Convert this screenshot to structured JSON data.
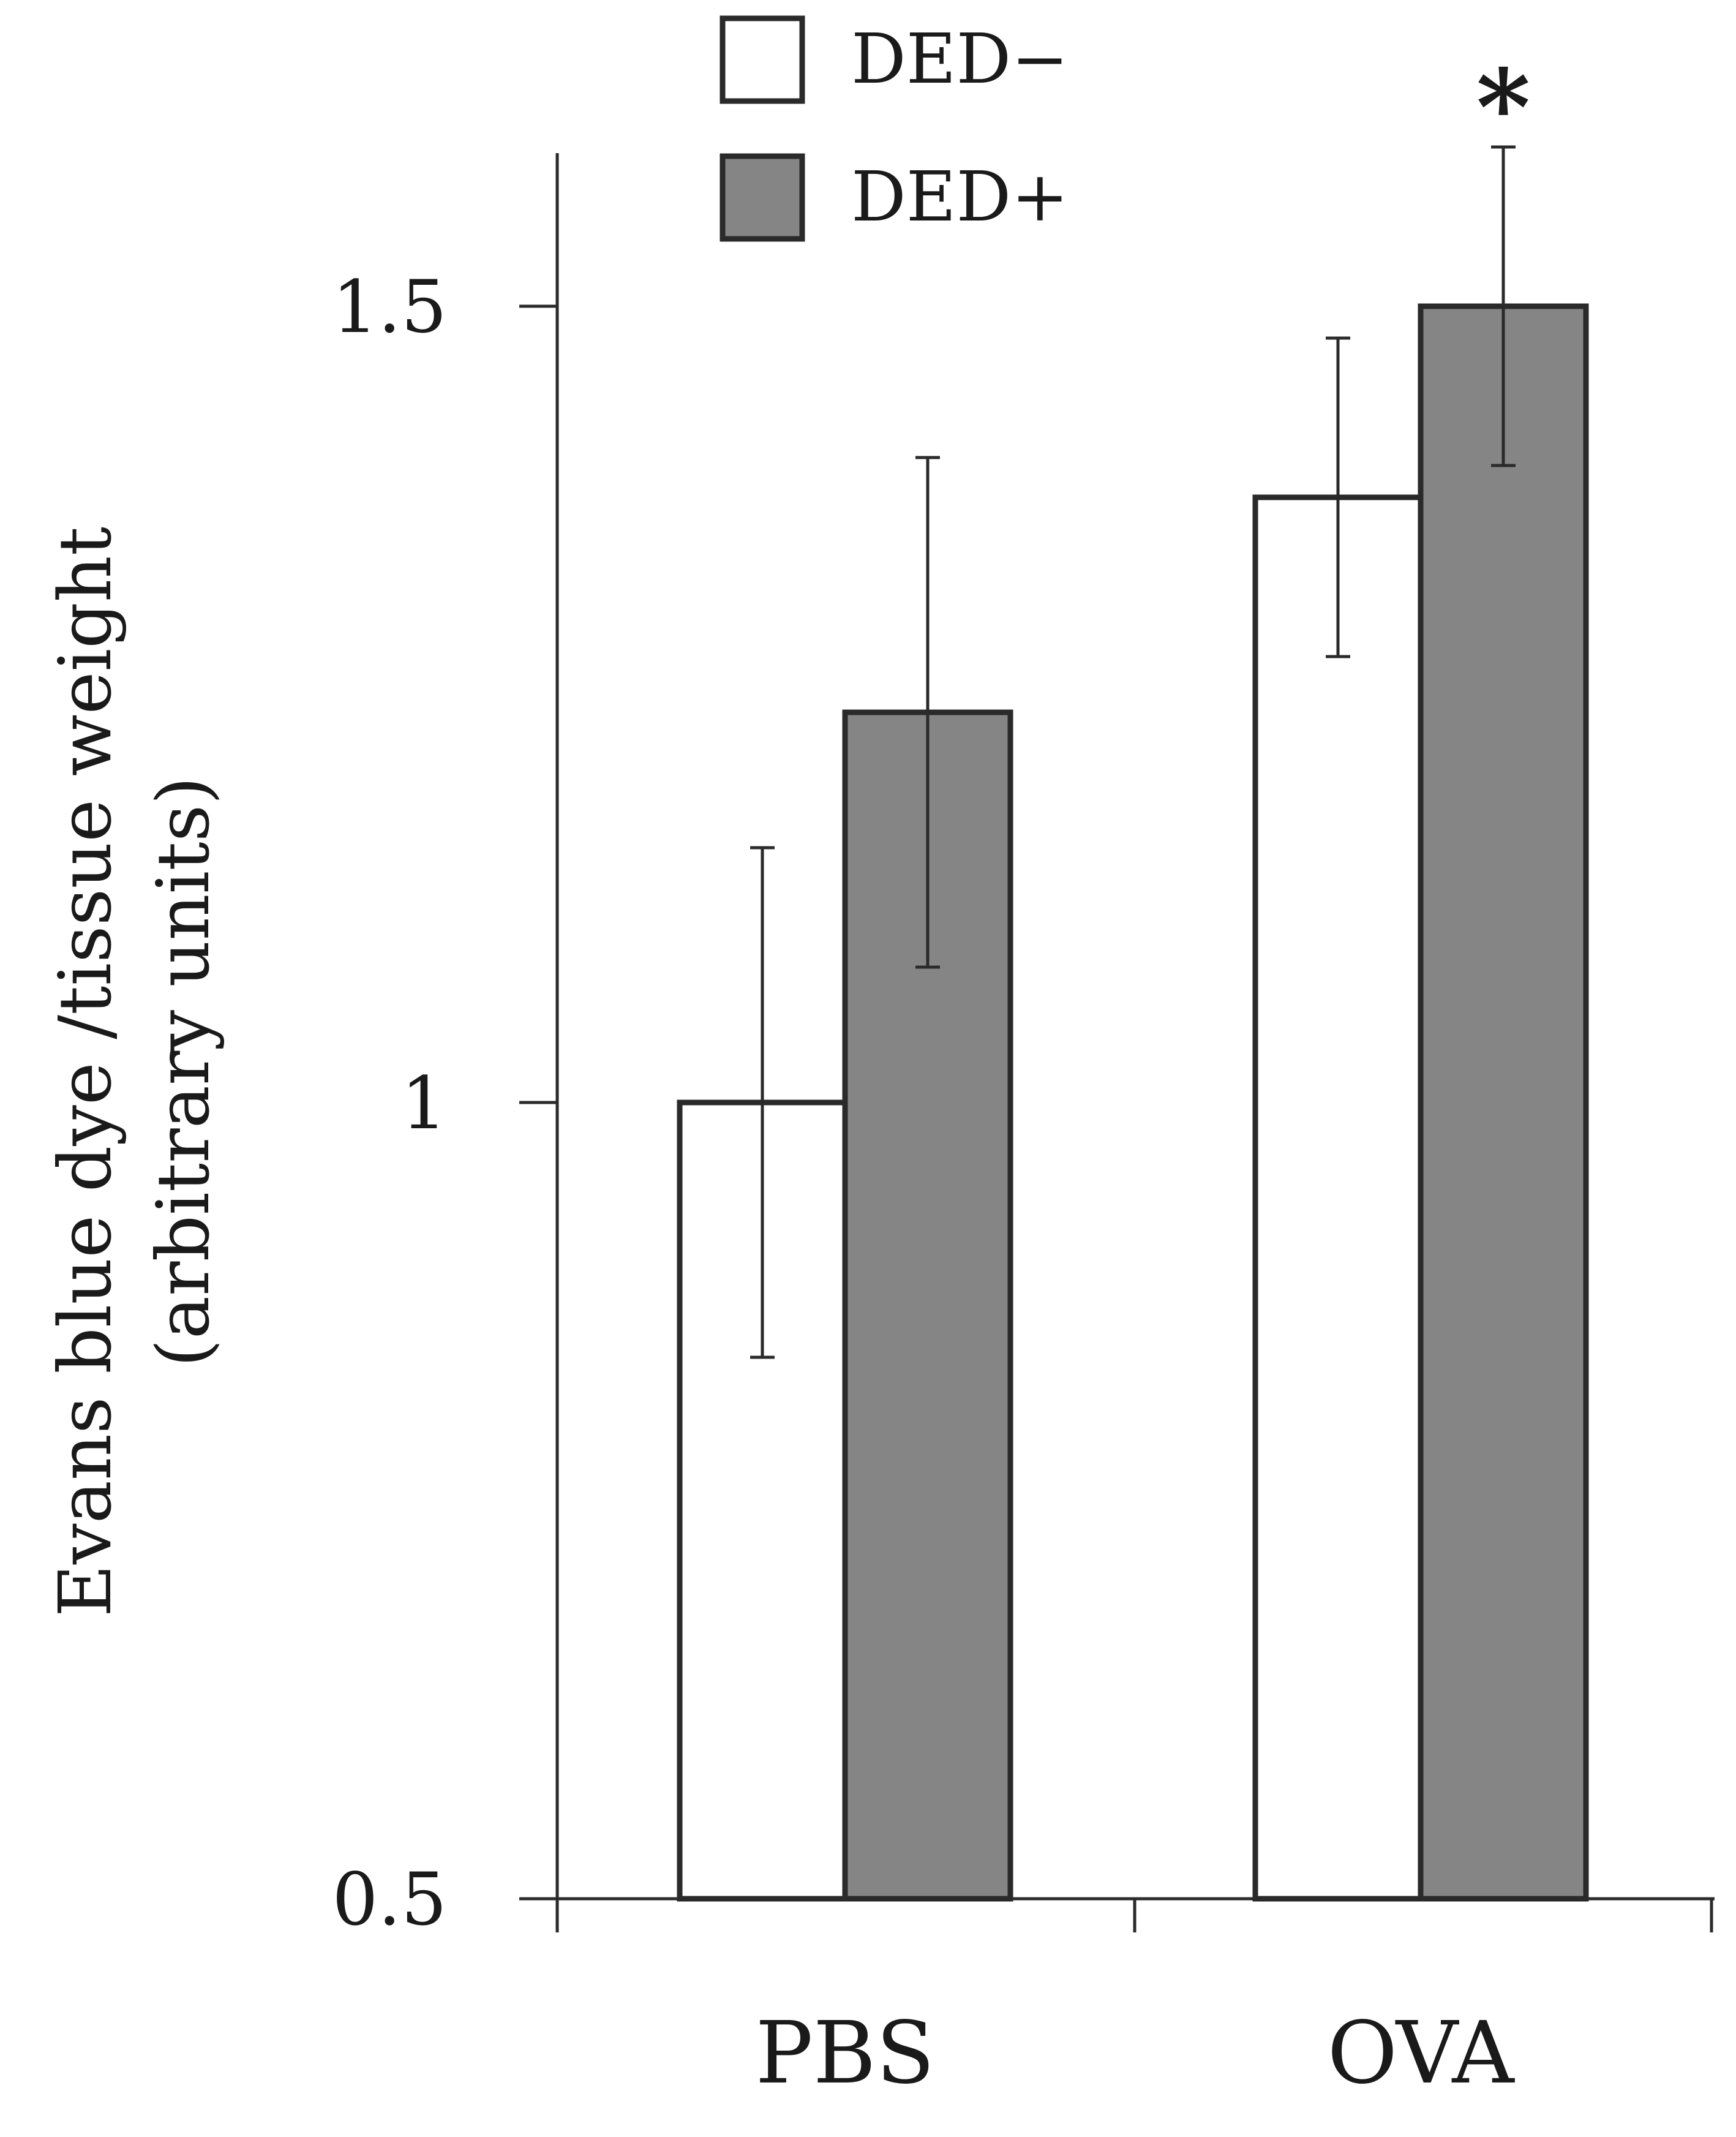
{
  "chart_data": {
    "type": "bar",
    "title": "",
    "xlabel": "",
    "ylabel_lines": [
      "Evans blue dye /tissue weight",
      "(arbitrary units)"
    ],
    "categories": [
      "PBS",
      "OVA"
    ],
    "ylim": [
      0.5,
      1.5
    ],
    "yticks": [
      0.5,
      1,
      1.5
    ],
    "ytick_labels": [
      "0.5",
      "1",
      "1.5"
    ],
    "grid": false,
    "legend_position": "top-center",
    "series": [
      {
        "name": "DED−",
        "color": "#ffffff",
        "values": [
          1.0,
          1.38
        ],
        "error": [
          0.16,
          0.1
        ]
      },
      {
        "name": "DED+",
        "color": "#858585",
        "values": [
          1.245,
          1.5
        ],
        "error": [
          0.16,
          0.1
        ]
      }
    ],
    "annotations": [
      {
        "text": "*",
        "category": "OVA",
        "series": "DED+"
      }
    ]
  }
}
